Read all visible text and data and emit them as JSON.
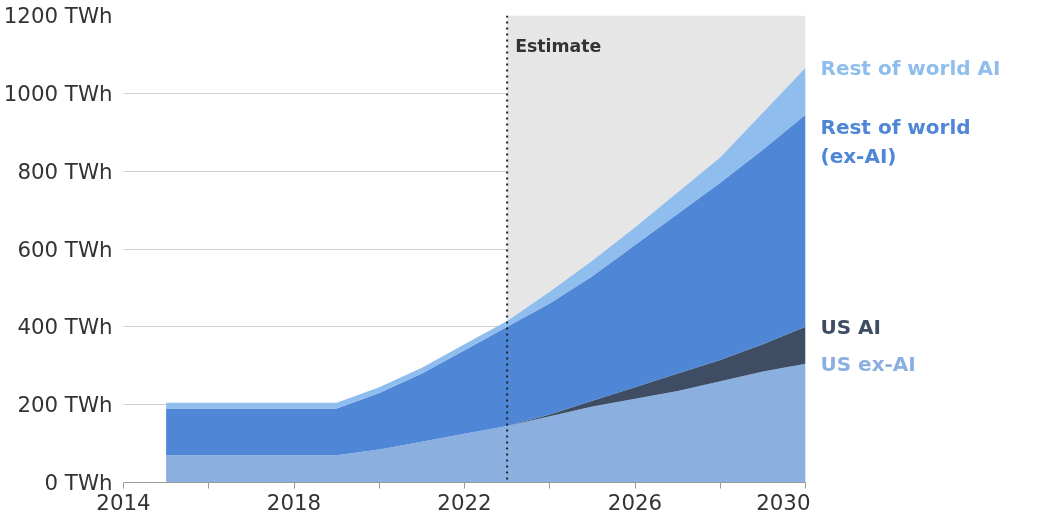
{
  "chart_data": {
    "type": "area",
    "stacked": true,
    "x": [
      2015,
      2016,
      2017,
      2018,
      2019,
      2020,
      2021,
      2022,
      2023,
      2024,
      2025,
      2026,
      2027,
      2028,
      2029,
      2030
    ],
    "series": [
      {
        "name": "US ex-AI",
        "color": "#8bb0e0",
        "values": [
          70,
          70,
          70,
          70,
          70,
          85,
          105,
          125,
          145,
          170,
          195,
          215,
          235,
          260,
          285,
          305
        ]
      },
      {
        "name": "US AI",
        "color": "#3e4d63",
        "values": [
          0,
          0,
          0,
          0,
          0,
          0,
          0,
          0,
          0,
          5,
          15,
          30,
          45,
          55,
          70,
          95
        ]
      },
      {
        "name": "Rest of world (ex-AI)",
        "color": "#4f86d6",
        "values": [
          120,
          120,
          120,
          120,
          120,
          145,
          175,
          215,
          255,
          285,
          320,
          365,
          410,
          455,
          500,
          545
        ]
      },
      {
        "name": "Rest of world AI",
        "color": "#8fbdee",
        "values": [
          15,
          15,
          15,
          15,
          15,
          15,
          15,
          15,
          15,
          30,
          40,
          45,
          55,
          65,
          95,
          120
        ]
      }
    ],
    "xlim": [
      2014,
      2030
    ],
    "xticks": [
      2014,
      {
        "value": 2016,
        "label": null
      },
      2018,
      {
        "value": 2020,
        "label": null
      },
      2022,
      {
        "value": 2024,
        "label": null
      },
      2026,
      {
        "value": 2028,
        "label": null
      },
      2030
    ],
    "ylim": [
      0,
      1200
    ],
    "yticks": [
      {
        "value": 0,
        "label": "0 TWh"
      },
      {
        "value": 200,
        "label": "200 TWh"
      },
      {
        "value": 400,
        "label": "400 TWh"
      },
      {
        "value": 600,
        "label": "600 TWh"
      },
      {
        "value": 800,
        "label": "800 TWh"
      },
      {
        "value": 1000,
        "label": "1000 TWh"
      },
      {
        "value": 1200,
        "label": "1200 TWh"
      }
    ],
    "grid": "y",
    "legend": false,
    "ref_lines": [
      {
        "axis": "x",
        "value": 2023,
        "label": null,
        "color": "#222222",
        "line_style": "dotted"
      }
    ],
    "bands": [
      {
        "axis": "x",
        "from": 2023,
        "to": 2030,
        "label": "Estimate",
        "color": "#e6e6e6"
      }
    ]
  }
}
